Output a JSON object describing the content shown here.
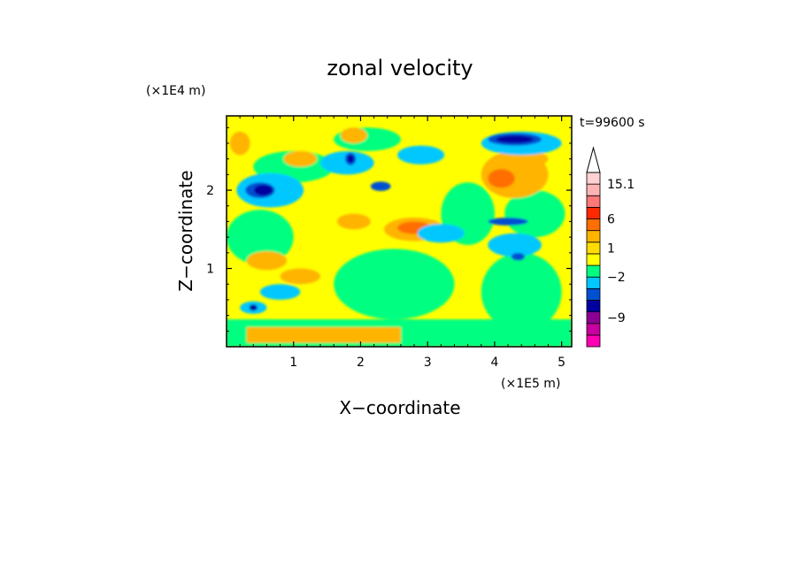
{
  "chart_data": {
    "type": "heatmap",
    "title": "zonal velocity",
    "xlabel": "X−coordinate",
    "ylabel": "Z−coordinate",
    "x_unit": "(×1E5 m)",
    "y_unit": "(×1E4 m)",
    "time_label": "t=99600 s",
    "xlim": [
      0,
      5.15
    ],
    "ylim": [
      0,
      2.95
    ],
    "x_ticks": [
      {
        "value": 1,
        "label": "1"
      },
      {
        "value": 2,
        "label": "2"
      },
      {
        "value": 3,
        "label": "3"
      },
      {
        "value": 4,
        "label": "4"
      },
      {
        "value": 5,
        "label": "5"
      }
    ],
    "y_ticks": [
      {
        "value": 1,
        "label": "1"
      },
      {
        "value": 2,
        "label": "2"
      }
    ],
    "colorbar": {
      "has_upper_arrow": true,
      "levels": [
        {
          "color": "#ff00b4"
        },
        {
          "color": "#c800a0"
        },
        {
          "color": "#8c0096"
        },
        {
          "color": "#0000a0"
        },
        {
          "color": "#0050d2"
        },
        {
          "color": "#00c8ff"
        },
        {
          "color": "#00ff80"
        },
        {
          "color": "#ffff00"
        },
        {
          "color": "#ffdc00"
        },
        {
          "color": "#ffb400"
        },
        {
          "color": "#ff6e00"
        },
        {
          "color": "#ff2800"
        },
        {
          "color": "#ff7878"
        },
        {
          "color": "#ffb4b4"
        },
        {
          "color": "#ffd2d2"
        }
      ],
      "tick_labels": [
        {
          "label": "15.1",
          "level_boundary": 14
        },
        {
          "label": "6",
          "level_boundary": 11
        },
        {
          "label": "1",
          "level_boundary": 8.5
        },
        {
          "label": "−2",
          "level_boundary": 6
        },
        {
          "label": "−9",
          "level_boundary": 2.5
        }
      ]
    },
    "field": {
      "background_color": "#ffff00",
      "features": [
        {
          "type": "band",
          "color": "#00ff80",
          "x0": 0.0,
          "x1": 5.15,
          "z0": 0.0,
          "z1": 0.35
        },
        {
          "type": "band",
          "color": "#ffb400",
          "x0": 0.3,
          "x1": 2.6,
          "z0": 0.05,
          "z1": 0.25
        },
        {
          "type": "blob",
          "color": "#00ff80",
          "x": 2.5,
          "z": 0.8,
          "rx": 0.9,
          "rz": 0.45
        },
        {
          "type": "blob",
          "color": "#00ff80",
          "x": 0.5,
          "z": 1.4,
          "rx": 0.5,
          "rz": 0.35
        },
        {
          "type": "blob",
          "color": "#00ff80",
          "x": 4.4,
          "z": 0.7,
          "rx": 0.6,
          "rz": 0.5
        },
        {
          "type": "blob",
          "color": "#00ff80",
          "x": 3.6,
          "z": 1.7,
          "rx": 0.4,
          "rz": 0.4
        },
        {
          "type": "blob",
          "color": "#00ff80",
          "x": 1.0,
          "z": 2.3,
          "rx": 0.6,
          "rz": 0.2
        },
        {
          "type": "blob",
          "color": "#00ff80",
          "x": 4.6,
          "z": 1.7,
          "rx": 0.45,
          "rz": 0.3
        },
        {
          "type": "blob",
          "color": "#00ff80",
          "x": 2.1,
          "z": 2.65,
          "rx": 0.5,
          "rz": 0.15
        },
        {
          "type": "blob",
          "color": "#ffb400",
          "x": 2.8,
          "z": 1.5,
          "rx": 0.45,
          "rz": 0.15
        },
        {
          "type": "blob",
          "color": "#ff6e00",
          "x": 2.8,
          "z": 1.52,
          "rx": 0.25,
          "rz": 0.08
        },
        {
          "type": "blob",
          "color": "#ffb400",
          "x": 4.3,
          "z": 2.2,
          "rx": 0.5,
          "rz": 0.3
        },
        {
          "type": "blob",
          "color": "#ff6e00",
          "x": 4.1,
          "z": 2.15,
          "rx": 0.2,
          "rz": 0.12
        },
        {
          "type": "blob",
          "color": "#ffb400",
          "x": 0.6,
          "z": 1.1,
          "rx": 0.3,
          "rz": 0.12
        },
        {
          "type": "blob",
          "color": "#ffb400",
          "x": 1.1,
          "z": 2.4,
          "rx": 0.25,
          "rz": 0.1
        },
        {
          "type": "blob",
          "color": "#ffb400",
          "x": 0.2,
          "z": 2.6,
          "rx": 0.15,
          "rz": 0.15
        },
        {
          "type": "blob",
          "color": "#ffb400",
          "x": 1.9,
          "z": 1.6,
          "rx": 0.25,
          "rz": 0.1
        },
        {
          "type": "blob",
          "color": "#ffb400",
          "x": 1.9,
          "z": 2.7,
          "rx": 0.2,
          "rz": 0.1
        },
        {
          "type": "blob",
          "color": "#ffb400",
          "x": 1.1,
          "z": 0.9,
          "rx": 0.3,
          "rz": 0.1
        },
        {
          "type": "blob",
          "color": "#ffb400",
          "x": 4.5,
          "z": 2.4,
          "rx": 0.3,
          "rz": 0.1
        },
        {
          "type": "blob",
          "color": "#00c8ff",
          "x": 0.65,
          "z": 2.0,
          "rx": 0.5,
          "rz": 0.22
        },
        {
          "type": "blob",
          "color": "#00c8ff",
          "x": 1.8,
          "z": 2.35,
          "rx": 0.4,
          "rz": 0.15
        },
        {
          "type": "blob",
          "color": "#00c8ff",
          "x": 3.2,
          "z": 1.45,
          "rx": 0.35,
          "rz": 0.12
        },
        {
          "type": "blob",
          "color": "#00c8ff",
          "x": 4.3,
          "z": 1.3,
          "rx": 0.4,
          "rz": 0.15
        },
        {
          "type": "blob",
          "color": "#00c8ff",
          "x": 4.4,
          "z": 2.6,
          "rx": 0.6,
          "rz": 0.15
        },
        {
          "type": "blob",
          "color": "#00c8ff",
          "x": 0.8,
          "z": 0.7,
          "rx": 0.3,
          "rz": 0.1
        },
        {
          "type": "blob",
          "color": "#00c8ff",
          "x": 2.9,
          "z": 2.45,
          "rx": 0.35,
          "rz": 0.12
        },
        {
          "type": "blob",
          "color": "#00c8ff",
          "x": 0.4,
          "z": 0.5,
          "rx": 0.2,
          "rz": 0.08
        },
        {
          "type": "blob",
          "color": "#0050d2",
          "x": 0.5,
          "z": 2.0,
          "rx": 0.22,
          "rz": 0.1
        },
        {
          "type": "blob",
          "color": "#0050d2",
          "x": 4.3,
          "z": 2.65,
          "rx": 0.4,
          "rz": 0.08
        },
        {
          "type": "blob",
          "color": "#0050d2",
          "x": 1.85,
          "z": 2.4,
          "rx": 0.08,
          "rz": 0.08
        },
        {
          "type": "blob",
          "color": "#0050d2",
          "x": 4.35,
          "z": 1.15,
          "rx": 0.1,
          "rz": 0.05
        },
        {
          "type": "blob",
          "color": "#0050d2",
          "x": 4.2,
          "z": 1.6,
          "rx": 0.3,
          "rz": 0.05
        },
        {
          "type": "blob",
          "color": "#0050d2",
          "x": 2.3,
          "z": 2.05,
          "rx": 0.15,
          "rz": 0.06
        },
        {
          "type": "blob",
          "color": "#0000a0",
          "x": 0.55,
          "z": 2.0,
          "rx": 0.14,
          "rz": 0.07
        },
        {
          "type": "blob",
          "color": "#0000a0",
          "x": 4.3,
          "z": 2.65,
          "rx": 0.28,
          "rz": 0.05
        },
        {
          "type": "blob",
          "color": "#0000a0",
          "x": 0.4,
          "z": 0.5,
          "rx": 0.06,
          "rz": 0.04
        },
        {
          "type": "blob",
          "color": "#0000a0",
          "x": 1.85,
          "z": 2.4,
          "rx": 0.05,
          "rz": 0.05
        }
      ]
    }
  }
}
